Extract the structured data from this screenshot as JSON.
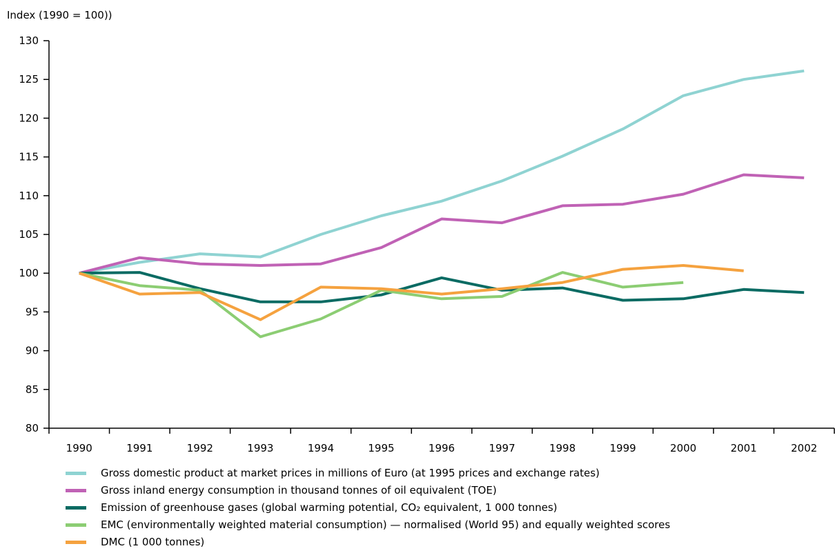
{
  "chart_data": {
    "type": "line",
    "ylabel": "Index (1990 = 100))",
    "xlabel": "",
    "ylim": [
      80,
      130
    ],
    "yticks": [
      80,
      85,
      90,
      95,
      100,
      105,
      110,
      115,
      120,
      125,
      130
    ],
    "categories": [
      "1990",
      "1991",
      "1992",
      "1993",
      "1994",
      "1995",
      "1996",
      "1997",
      "1998",
      "1999",
      "2000",
      "2001",
      "2002"
    ],
    "grid": false,
    "legend_position": "bottom",
    "series": [
      {
        "name": "Gross domestic product at market prices in millions of Euro (at 1995 prices and exchange rates)",
        "color": "#8fd3d2",
        "values": [
          100,
          101.4,
          102.5,
          102.1,
          105.0,
          107.4,
          109.3,
          111.9,
          115.1,
          118.6,
          122.9,
          125.0,
          126.1
        ]
      },
      {
        "name": "Gross inland energy consumption in thousand tonnes of oil equivalent (TOE)",
        "color": "#c062b5",
        "values": [
          100,
          102.0,
          101.2,
          101.0,
          101.2,
          103.3,
          107.0,
          106.5,
          108.7,
          108.9,
          110.2,
          112.7,
          112.3
        ]
      },
      {
        "name": "Emission of greenhouse gases (global warming potential, CO₂ equivalent, 1 000 tonnes)",
        "color": "#0a6b63",
        "values": [
          100,
          100.1,
          98.0,
          96.3,
          96.3,
          97.2,
          99.4,
          97.8,
          98.1,
          96.5,
          96.7,
          97.9,
          97.5
        ]
      },
      {
        "name": "EMC (environmentally weighted material consumption) — normalised (World 95) and equally weighted scores",
        "color": "#8ccd73",
        "values": [
          100,
          98.4,
          97.8,
          91.8,
          94.1,
          97.8,
          96.7,
          97.0,
          100.1,
          98.2,
          98.8,
          null,
          null
        ]
      },
      {
        "name": "DMC (1 000 tonnes)",
        "color": "#f5a23f",
        "values": [
          100,
          97.3,
          97.5,
          94.0,
          98.2,
          98.0,
          97.3,
          98.0,
          98.8,
          100.5,
          101.0,
          100.3,
          null
        ]
      }
    ]
  }
}
